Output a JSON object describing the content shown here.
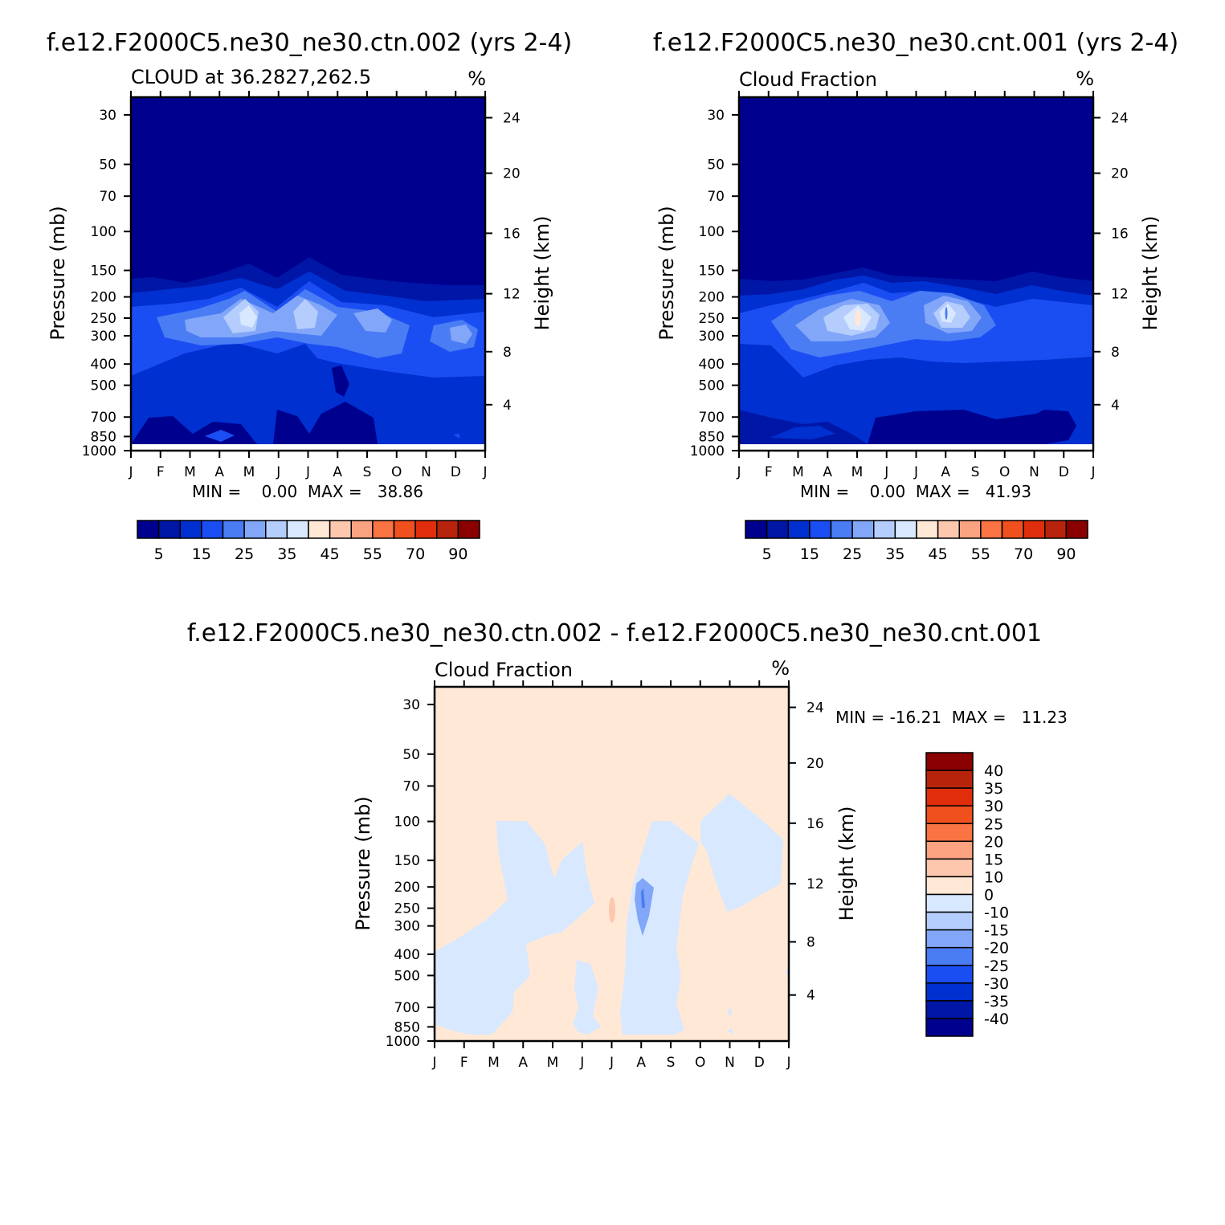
{
  "chart_data": [
    {
      "type": "heatmap",
      "title": "f.e12.F2000C5.ne30_ne30.ctn.002 (yrs 2-4)",
      "subtitle": "CLOUD at 36.2827,262.5",
      "units": "%",
      "ylabel": "Pressure (mb)",
      "ylabel_right": "Height (km)",
      "xticks": [
        "J",
        "F",
        "M",
        "A",
        "M",
        "J",
        "J",
        "A",
        "S",
        "O",
        "N",
        "D",
        "J"
      ],
      "yticks": [
        "30",
        "50",
        "70",
        "100",
        "150",
        "200",
        "250",
        "300",
        "400",
        "500",
        "700",
        "850",
        "1000"
      ],
      "yticks_right": [
        "24",
        "20",
        "16",
        "12",
        "8",
        "4"
      ],
      "stats": "MIN =    0.00  MAX =   38.86",
      "min": 0.0,
      "max": 38.86,
      "colorbar_labels": [
        "5",
        "15",
        "25",
        "35",
        "45",
        "55",
        "70",
        "90"
      ],
      "colorbar_colors": [
        "#00008f",
        "#0016a6",
        "#0030d0",
        "#1b4ef2",
        "#4a7cf4",
        "#82a6f8",
        "#b4cdfc",
        "#d8e8ff",
        "#ffe8d6",
        "#fdc7ae",
        "#fba380",
        "#f97343",
        "#f04f1e",
        "#e02e0c",
        "#b8240b",
        "#8b0000"
      ]
    },
    {
      "type": "heatmap",
      "title": "f.e12.F2000C5.ne30_ne30.cnt.001 (yrs 2-4)",
      "subtitle": "Cloud Fraction",
      "units": "%",
      "ylabel": "Pressure (mb)",
      "ylabel_right": "Height (km)",
      "xticks": [
        "J",
        "F",
        "M",
        "A",
        "M",
        "J",
        "J",
        "A",
        "S",
        "O",
        "N",
        "D",
        "J"
      ],
      "yticks": [
        "30",
        "50",
        "70",
        "100",
        "150",
        "200",
        "250",
        "300",
        "400",
        "500",
        "700",
        "850",
        "1000"
      ],
      "yticks_right": [
        "24",
        "20",
        "16",
        "12",
        "8",
        "4"
      ],
      "stats": "MIN =    0.00  MAX =   41.93",
      "min": 0.0,
      "max": 41.93,
      "colorbar_labels": [
        "5",
        "15",
        "25",
        "35",
        "45",
        "55",
        "70",
        "90"
      ],
      "colorbar_colors": [
        "#00008f",
        "#0016a6",
        "#0030d0",
        "#1b4ef2",
        "#4a7cf4",
        "#82a6f8",
        "#b4cdfc",
        "#d8e8ff",
        "#ffe8d6",
        "#fdc7ae",
        "#fba380",
        "#f97343",
        "#f04f1e",
        "#e02e0c",
        "#b8240b",
        "#8b0000"
      ]
    },
    {
      "type": "heatmap",
      "title": "f.e12.F2000C5.ne30_ne30.ctn.002 - f.e12.F2000C5.ne30_ne30.cnt.001",
      "subtitle": "Cloud Fraction",
      "units": "%",
      "ylabel": "Pressure (mb)",
      "ylabel_right": "Height (km)",
      "xticks": [
        "J",
        "F",
        "M",
        "A",
        "M",
        "J",
        "J",
        "A",
        "S",
        "O",
        "N",
        "D",
        "J"
      ],
      "yticks": [
        "30",
        "50",
        "70",
        "100",
        "150",
        "200",
        "250",
        "300",
        "400",
        "500",
        "700",
        "850",
        "1000"
      ],
      "yticks_right": [
        "24",
        "20",
        "16",
        "12",
        "8",
        "4"
      ],
      "stats": "MIN = -16.21  MAX =   11.23",
      "min": -16.21,
      "max": 11.23,
      "colorbar_labels": [
        "40",
        "35",
        "30",
        "25",
        "20",
        "15",
        "10",
        "0",
        "-10",
        "-15",
        "-20",
        "-25",
        "-30",
        "-35",
        "-40"
      ],
      "colorbar_colors": [
        "#8b0000",
        "#b8240b",
        "#e02e0c",
        "#f04f1e",
        "#f97343",
        "#fba380",
        "#fdc7ae",
        "#ffe8d6",
        "#d8e8ff",
        "#b4cdfc",
        "#82a6f8",
        "#4a7cf4",
        "#1b4ef2",
        "#0030d0",
        "#0016a6",
        "#00008f"
      ]
    }
  ]
}
